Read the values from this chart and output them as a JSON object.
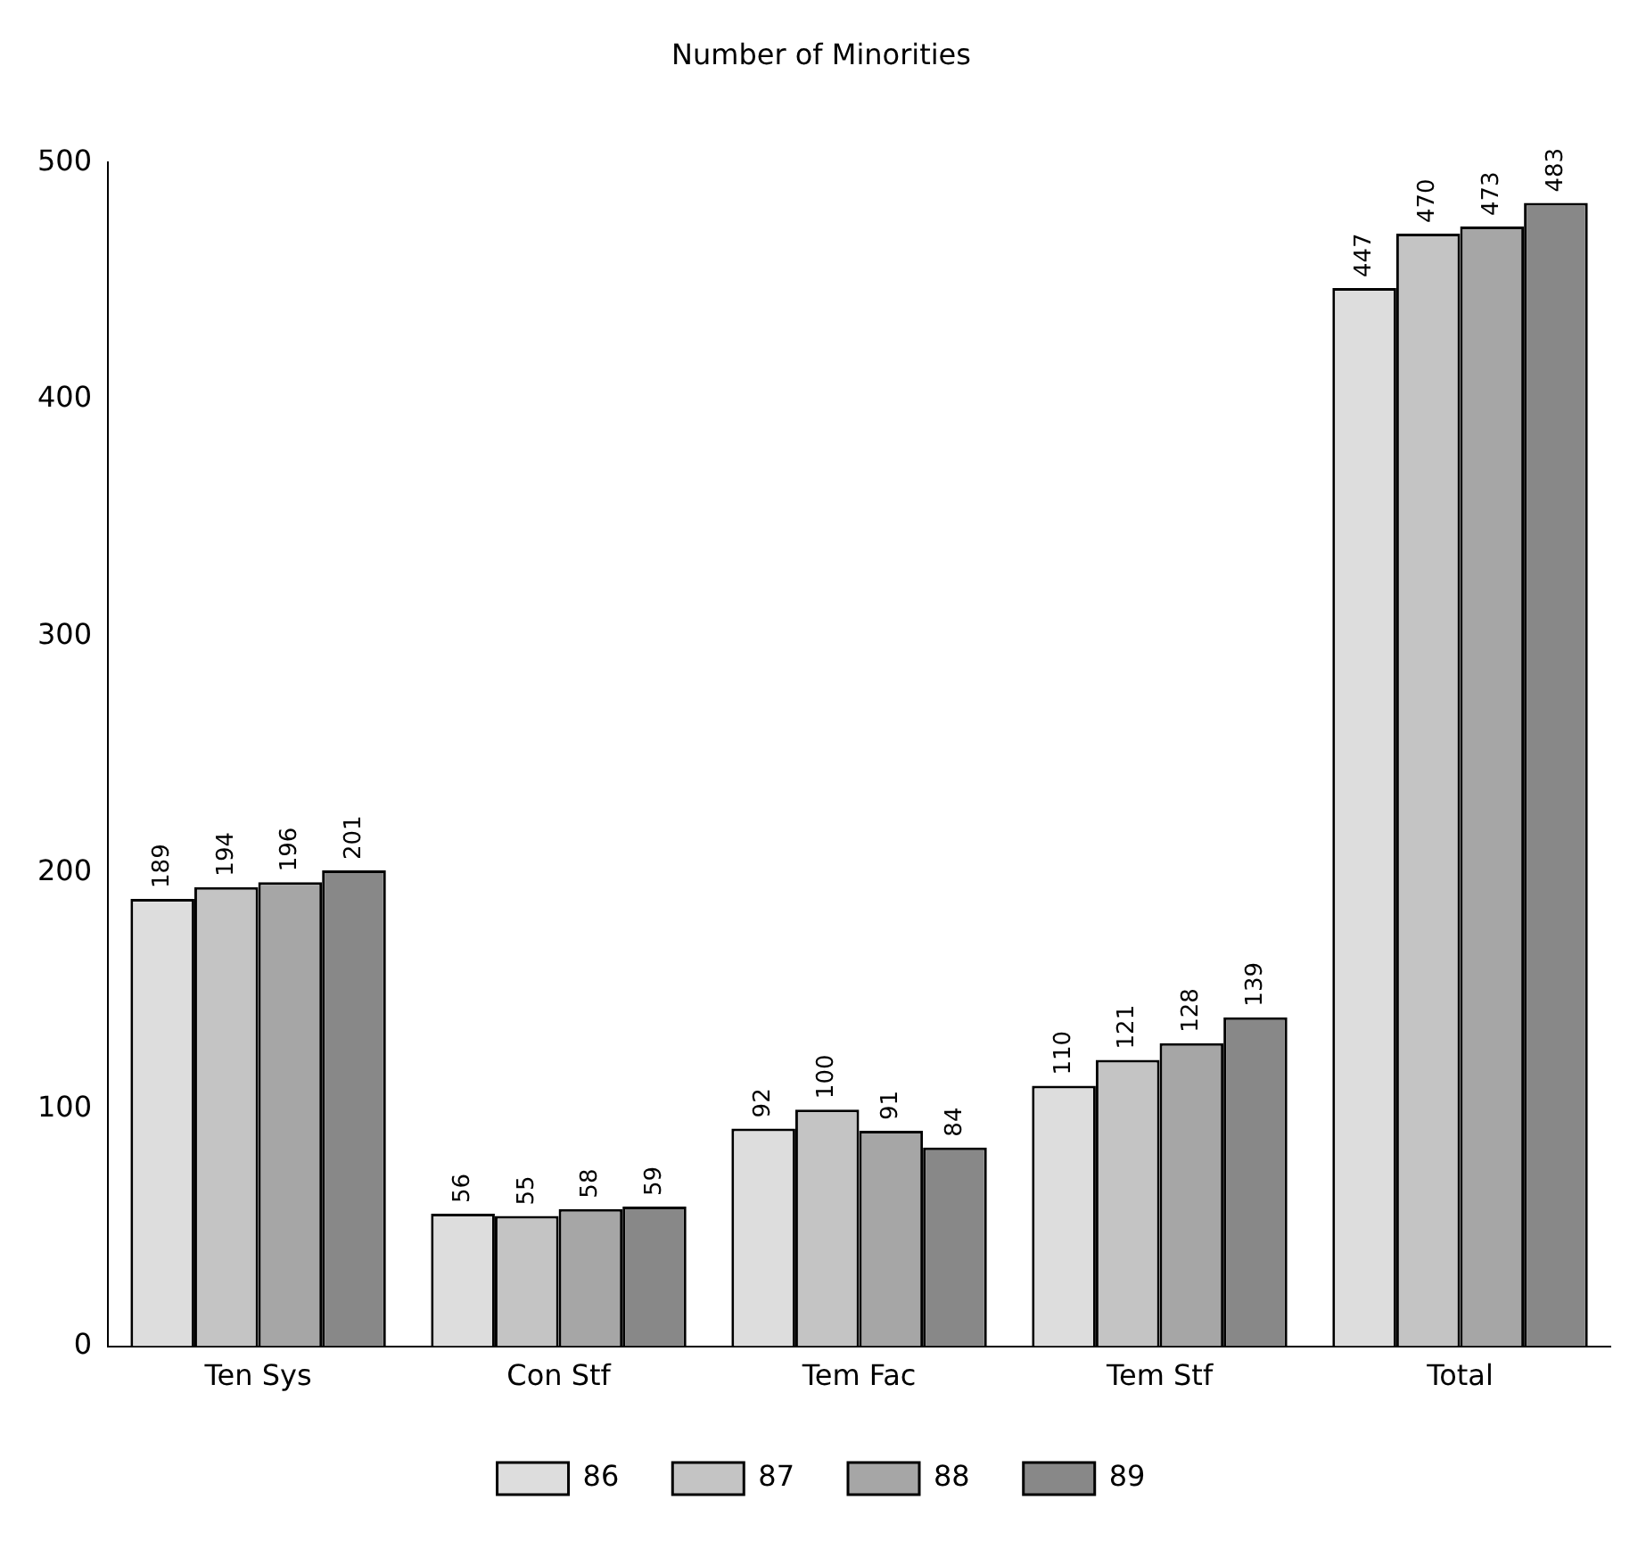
{
  "chart_data": {
    "type": "bar",
    "title": "Number of Minorities",
    "categories": [
      "Ten Sys",
      "Con Stf",
      "Tem Fac",
      "Tem Stf",
      "Total"
    ],
    "series": [
      {
        "name": "86",
        "color": "#dddddd",
        "values": [
          189,
          56,
          92,
          110,
          447
        ]
      },
      {
        "name": "87",
        "color": "#c4c4c4",
        "values": [
          194,
          55,
          100,
          121,
          470
        ]
      },
      {
        "name": "88",
        "color": "#a6a6a6",
        "values": [
          196,
          58,
          91,
          128,
          473
        ]
      },
      {
        "name": "89",
        "color": "#888888",
        "values": [
          201,
          59,
          84,
          139,
          483
        ]
      }
    ],
    "ylim": [
      0,
      500
    ],
    "yticks": [
      0,
      100,
      200,
      300,
      400,
      500
    ],
    "grid": false,
    "legend": "bottom",
    "data_labels": true
  }
}
